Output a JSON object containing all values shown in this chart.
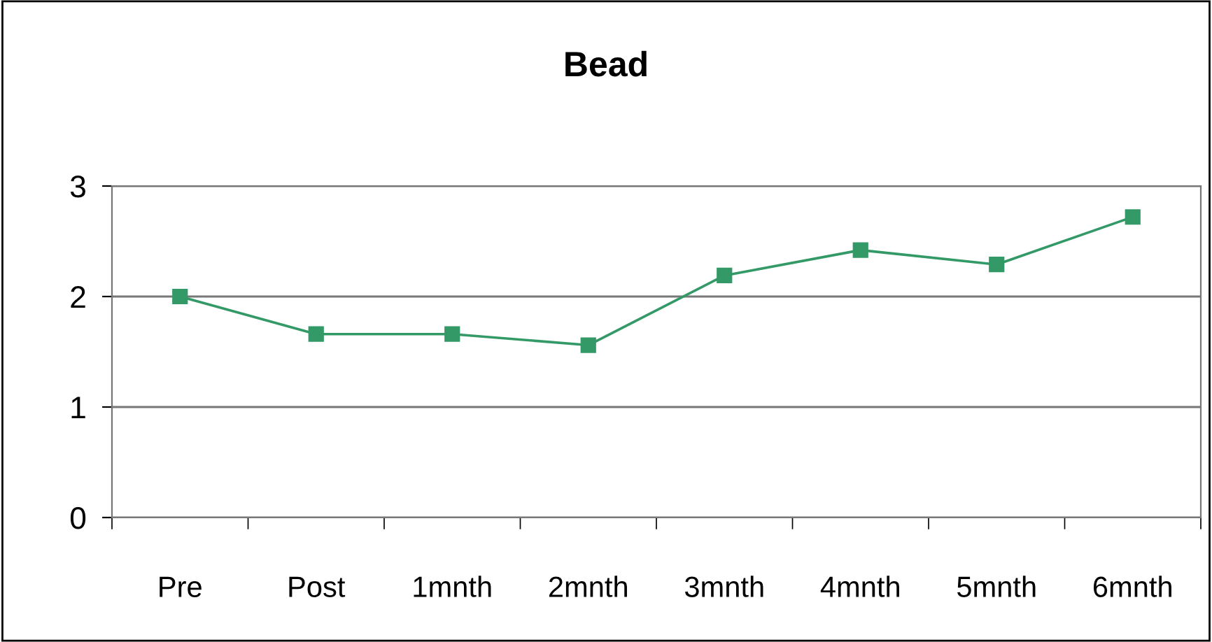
{
  "chart_data": {
    "type": "line",
    "title": "Bead",
    "categories": [
      "Pre",
      "Post",
      "1mnth",
      "2mnth",
      "3mnth",
      "4mnth",
      "5mnth",
      "6mnth"
    ],
    "series": [
      {
        "color": "#339966",
        "values": [
          2.0,
          1.66,
          1.66,
          1.56,
          2.19,
          2.42,
          2.29,
          2.72
        ]
      }
    ],
    "ylim": [
      0,
      3
    ],
    "yticks": [
      0,
      1,
      2,
      3
    ],
    "grid": "y",
    "marker": "square",
    "line_style": "solid",
    "legend": false
  }
}
